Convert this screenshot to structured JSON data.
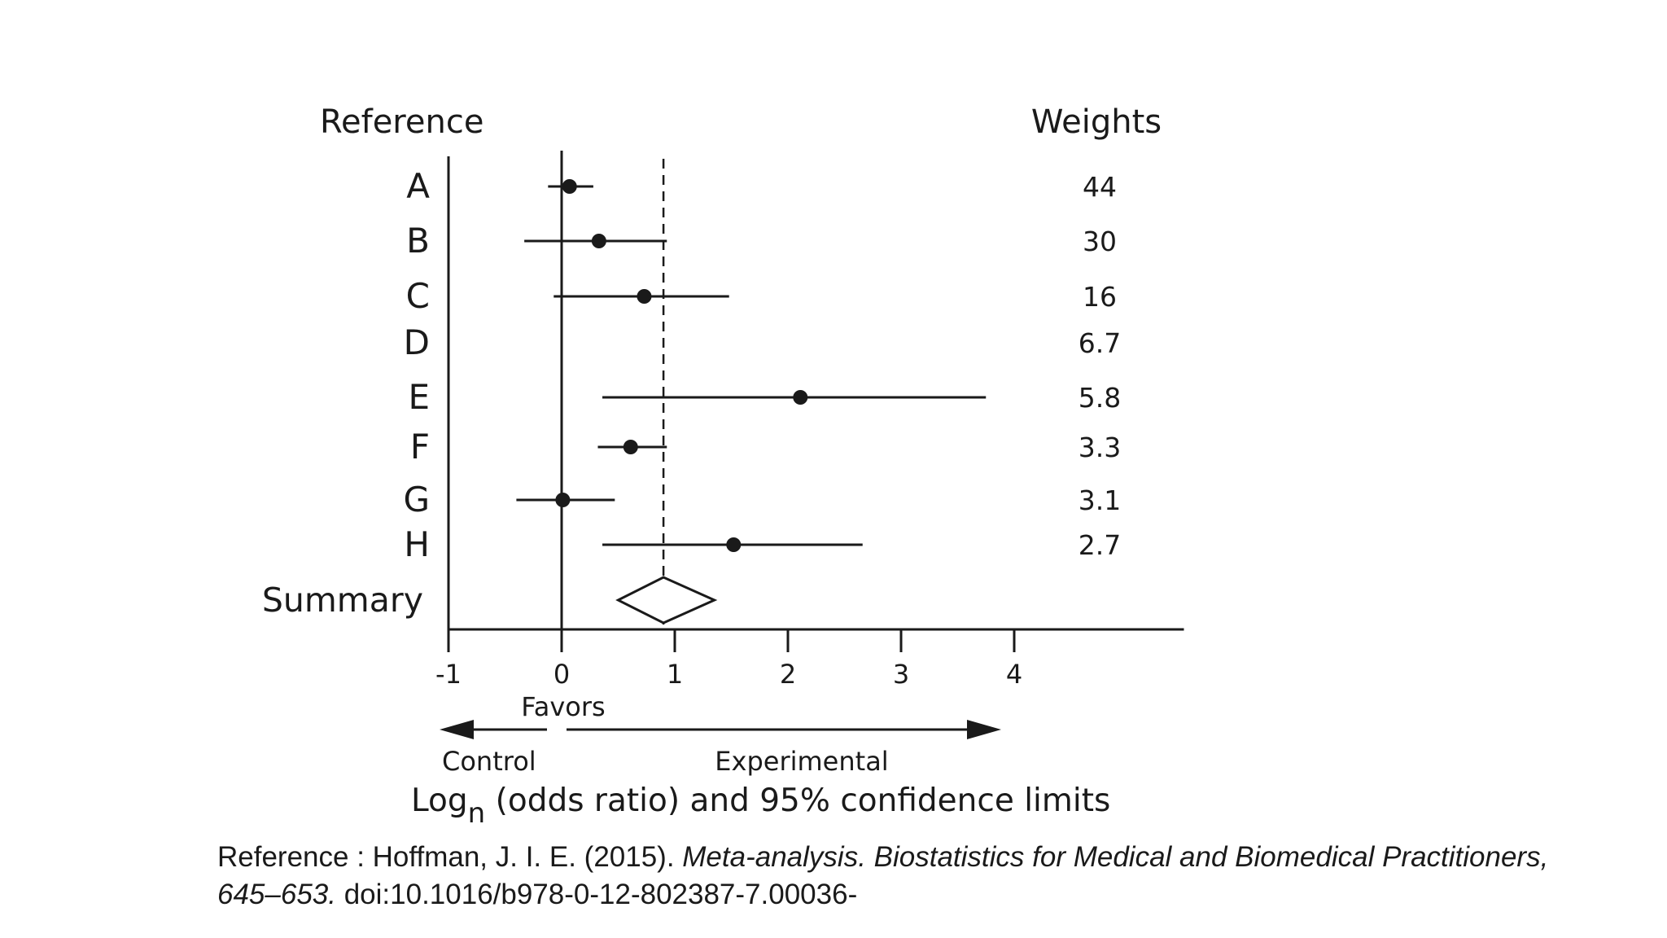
{
  "chart_data": {
    "type": "forest",
    "headers": {
      "reference": "Reference",
      "weights": "Weights"
    },
    "studies": [
      {
        "label": "A",
        "estimate": 0.07,
        "ci": [
          -0.12,
          0.28
        ],
        "weight": "44"
      },
      {
        "label": "B",
        "estimate": 0.33,
        "ci": [
          -0.33,
          0.93
        ],
        "weight": "30"
      },
      {
        "label": "C",
        "estimate": 0.73,
        "ci": [
          -0.07,
          1.48
        ],
        "weight": "16"
      },
      {
        "label": "D",
        "estimate": null,
        "ci": null,
        "weight": "6.7"
      },
      {
        "label": "E",
        "estimate": 2.11,
        "ci": [
          0.36,
          3.75
        ],
        "weight": "5.8"
      },
      {
        "label": "F",
        "estimate": 0.61,
        "ci": [
          0.32,
          0.93
        ],
        "weight": "3.3"
      },
      {
        "label": "G",
        "estimate": 0.01,
        "ci": [
          -0.4,
          0.47
        ],
        "weight": "3.1"
      },
      {
        "label": "H",
        "estimate": 1.52,
        "ci": [
          0.36,
          2.66
        ],
        "weight": "2.7"
      }
    ],
    "summary": {
      "label": "Summary",
      "estimate": 0.9,
      "ci": [
        0.5,
        1.35
      ]
    },
    "reference_line": 0,
    "dashed_line": 0.9,
    "xlim": [
      -1,
      5.5
    ],
    "x_ticks": [
      "-1",
      "0",
      "1",
      "2",
      "3",
      "4"
    ],
    "favors_label": "Favors",
    "control_label": "Control",
    "experimental_label": "Experimental",
    "xlabel_main": "Log",
    "xlabel_sub": "n",
    "xlabel_rest": " (odds ratio) and 95% confidence limits"
  },
  "citation": {
    "prefix": "Reference : Hoffman, J. I. E. (2015). ",
    "title": "Meta-analysis. Biostatistics for Medical and Biomedical Practitioners, 645–653.",
    "doi": " doi:10.1016/b978-0-12-802387-7.00036-"
  }
}
